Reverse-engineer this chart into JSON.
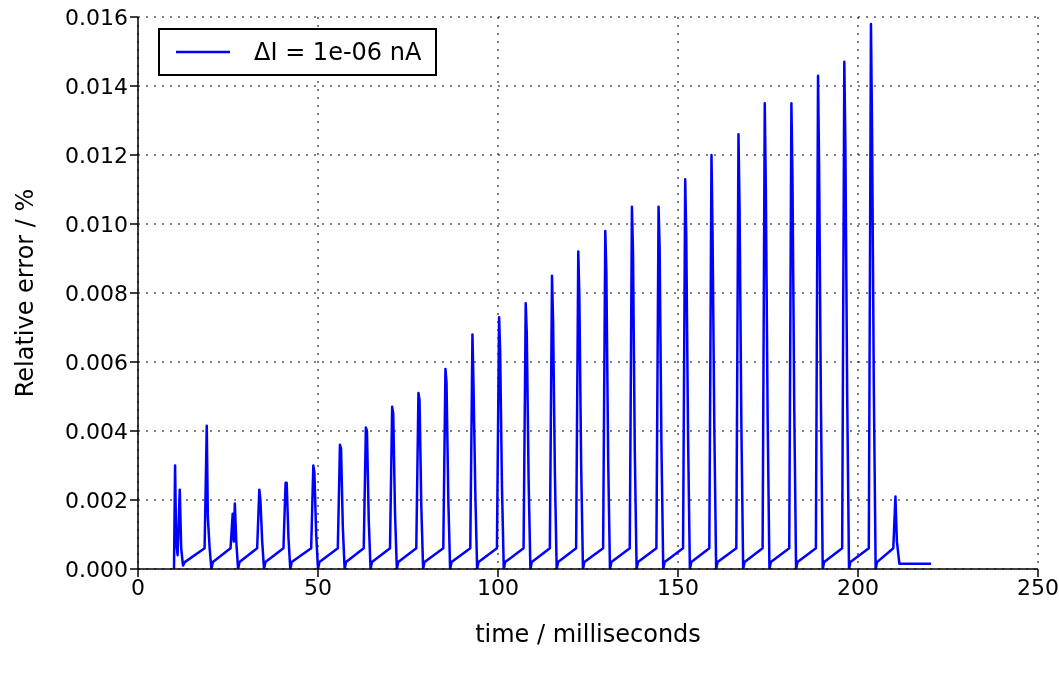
{
  "chart_data": {
    "type": "line",
    "xlabel": "time / milliseconds",
    "ylabel": "Relative error / %",
    "xlim": [
      0,
      250
    ],
    "xticks": [
      0,
      50,
      100,
      150,
      200,
      250
    ],
    "ylim": [
      0,
      0.016
    ],
    "yticks": [
      {
        "value": 0,
        "label": "0.000"
      },
      {
        "value": 0.002,
        "label": "0.002"
      },
      {
        "value": 0.004,
        "label": "0.004"
      },
      {
        "value": 0.006,
        "label": "0.006"
      },
      {
        "value": 0.008,
        "label": "0.008"
      },
      {
        "value": 0.01,
        "label": "0.010"
      },
      {
        "value": 0.012,
        "label": "0.012"
      },
      {
        "value": 0.014,
        "label": "0.014"
      },
      {
        "value": 0.016,
        "label": "0.016"
      }
    ],
    "grid": true,
    "legend": "top left",
    "marker": "none",
    "line_style": "solid",
    "series": [
      {
        "name": "ΔI = 1e-06 nA",
        "color": "#0000ff",
        "x": [
          10.0,
          10.3,
          10.6,
          11.0,
          11.6,
          12.0,
          12.5,
          13.0,
          18.5,
          19.1,
          19.4,
          19.9,
          20.4,
          20.8,
          25.7,
          26.3,
          26.6,
          26.9,
          27.3,
          27.8,
          28.2,
          33.1,
          33.7,
          34.0,
          34.5,
          35.0,
          35.4,
          40.4,
          41.0,
          41.3,
          41.8,
          42.3,
          42.7,
          48.1,
          48.7,
          49.0,
          49.5,
          50.0,
          50.4,
          55.5,
          56.1,
          56.4,
          56.9,
          57.4,
          57.8,
          62.7,
          63.3,
          63.6,
          64.1,
          64.6,
          65.0,
          70.0,
          70.6,
          70.9,
          71.4,
          71.9,
          72.3,
          77.3,
          77.9,
          78.2,
          78.7,
          79.2,
          79.6,
          84.8,
          85.4,
          85.7,
          86.2,
          86.7,
          87.1,
          92.3,
          92.9,
          93.2,
          93.7,
          94.2,
          94.6,
          99.7,
          100.3,
          100.6,
          101.1,
          101.6,
          102.0,
          107.1,
          107.7,
          108.0,
          108.5,
          109.0,
          109.4,
          114.4,
          115.0,
          115.3,
          115.8,
          116.3,
          116.7,
          121.7,
          122.3,
          122.6,
          123.1,
          123.6,
          124.0,
          129.2,
          129.8,
          130.1,
          130.6,
          131.1,
          131.5,
          136.6,
          137.2,
          137.5,
          138.0,
          138.5,
          138.9,
          144.0,
          144.6,
          144.9,
          145.4,
          145.9,
          146.3,
          151.4,
          152.0,
          152.3,
          152.8,
          153.3,
          153.7,
          158.7,
          159.3,
          159.6,
          160.1,
          160.6,
          161.0,
          166.2,
          166.8,
          167.1,
          167.6,
          168.1,
          168.5,
          173.5,
          174.1,
          174.4,
          174.9,
          175.4,
          175.8,
          180.9,
          181.5,
          181.8,
          182.3,
          182.8,
          183.2,
          188.3,
          188.9,
          189.2,
          189.7,
          190.2,
          190.6,
          195.6,
          196.2,
          196.5,
          197.0,
          197.5,
          197.9,
          203.0,
          203.6,
          203.9,
          204.4,
          204.9,
          205.3,
          209.8,
          210.4,
          210.8,
          211.5,
          220.3
        ],
        "values": [
          0,
          0.003,
          0.0008,
          0.0004,
          0.0023,
          0.0006,
          0.0001,
          0.0002,
          0.0006,
          0.00415,
          0.0015,
          0.0006,
          0,
          0.0002,
          0.0006,
          0.0016,
          0.0008,
          0.0019,
          0.0008,
          0,
          0.0002,
          0.0006,
          0.0023,
          0.002,
          0.0008,
          0,
          0.0002,
          0.0006,
          0.0025,
          0.0025,
          0.0009,
          0,
          0.0002,
          0.0006,
          0.003,
          0.0028,
          0.001,
          0,
          0.0002,
          0.0006,
          0.0036,
          0.0035,
          0.0012,
          0,
          0.0002,
          0.0006,
          0.0041,
          0.004,
          0.0014,
          0,
          0.0002,
          0.0006,
          0.0047,
          0.0045,
          0.0016,
          0,
          0.0002,
          0.0006,
          0.0051,
          0.0049,
          0.0018,
          0,
          0.0002,
          0.0006,
          0.0058,
          0.0054,
          0.002,
          0,
          0.0002,
          0.0006,
          0.0068,
          0.0053,
          0.0022,
          0,
          0.0002,
          0.0006,
          0.0073,
          0.0063,
          0.0024,
          0,
          0.0002,
          0.0006,
          0.0077,
          0.0068,
          0.0026,
          0,
          0.0002,
          0.0006,
          0.0085,
          0.0072,
          0.0028,
          0,
          0.0002,
          0.0006,
          0.0092,
          0.0079,
          0.003,
          0,
          0.0002,
          0.0006,
          0.0098,
          0.0086,
          0.0032,
          0,
          0.0002,
          0.0006,
          0.0105,
          0.0092,
          0.0034,
          0,
          0.0002,
          0.0006,
          0.0105,
          0.0093,
          0.0036,
          0,
          0.0002,
          0.0006,
          0.0113,
          0.0096,
          0.0038,
          0,
          0.0002,
          0.0006,
          0.012,
          0.0097,
          0.004,
          0,
          0.0002,
          0.0006,
          0.0126,
          0.0105,
          0.0042,
          0,
          0.0002,
          0.0006,
          0.0135,
          0.011,
          0.0044,
          0,
          0.0002,
          0.0006,
          0.0135,
          0.0113,
          0.0046,
          0,
          0.0002,
          0.0006,
          0.0143,
          0.0116,
          0.0048,
          0,
          0.0002,
          0.0006,
          0.0147,
          0.0122,
          0.005,
          0,
          0.0002,
          0.0006,
          0.0158,
          0.0128,
          0.0052,
          0,
          0.0002,
          0.0006,
          0.0021,
          0.0008,
          0.00015,
          0.00015
        ]
      }
    ]
  }
}
